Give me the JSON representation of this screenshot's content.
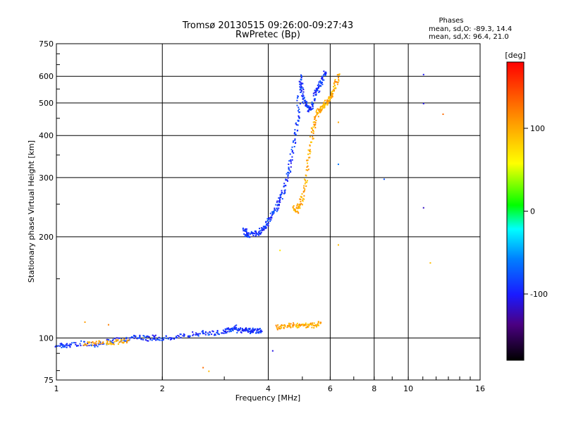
{
  "chart_data": {
    "type": "scatter",
    "title": "Tromsø 20130515 09:26:00-09:27:43",
    "subtitle": "RwPretec (Bp)",
    "xlabel": "Frequency [MHz]",
    "ylabel": "Stationary phase Virtual Height [km]",
    "x_scale": "log",
    "y_scale": "log",
    "xlim": [
      1,
      16
    ],
    "ylim": [
      75,
      750
    ],
    "x_ticks": [
      "1",
      "2",
      "4",
      "6",
      "8",
      "10",
      "16"
    ],
    "y_ticks": [
      "75",
      "100",
      "200",
      "300",
      "400",
      "500",
      "600",
      "750"
    ],
    "grid": true,
    "phases": {
      "header": "Phases",
      "o_stats": "mean, sd,O: -89.3, 14.4",
      "x_stats": "mean, sd,X:  96.4, 21.0"
    },
    "colorbar": {
      "label": "[deg]",
      "range": [
        -180,
        180
      ],
      "ticks": [
        "100",
        "0",
        "-100"
      ],
      "tick_values": [
        100,
        0,
        -100
      ]
    },
    "series": [
      {
        "name": "",
        "color_phase": -90,
        "segments": [
          [
            [
              1.0,
              96
            ],
            [
              1.05,
              95
            ],
            [
              1.1,
              96
            ],
            [
              1.2,
              97
            ],
            [
              1.3,
              96
            ],
            [
              1.4,
              98
            ],
            [
              1.5,
              99
            ],
            [
              1.6,
              100
            ],
            [
              1.7,
              101
            ],
            [
              1.8,
              100
            ],
            [
              1.9,
              101
            ],
            [
              2.0,
              100
            ],
            [
              2.2,
              101
            ],
            [
              2.4,
              103
            ],
            [
              2.6,
              104
            ],
            [
              2.8,
              104
            ],
            [
              3.0,
              105
            ],
            [
              3.1,
              106
            ],
            [
              3.2,
              108
            ],
            [
              3.3,
              105
            ],
            [
              3.4,
              107
            ],
            [
              3.5,
              105
            ],
            [
              3.6,
              106
            ],
            [
              3.7,
              105
            ],
            [
              3.8,
              106
            ]
          ],
          [
            [
              3.4,
              212
            ],
            [
              3.45,
              205
            ],
            [
              3.5,
              203
            ],
            [
              3.6,
              206
            ],
            [
              3.7,
              205
            ],
            [
              3.8,
              210
            ],
            [
              3.9,
              215
            ],
            [
              4.0,
              225
            ],
            [
              4.1,
              235
            ],
            [
              4.2,
              245
            ],
            [
              4.3,
              258
            ],
            [
              4.4,
              275
            ],
            [
              4.5,
              300
            ],
            [
              4.6,
              330
            ],
            [
              4.7,
              380
            ],
            [
              4.8,
              430
            ],
            [
              4.85,
              480
            ],
            [
              4.9,
              600
            ],
            [
              4.95,
              560
            ],
            [
              5.0,
              520
            ],
            [
              5.1,
              500
            ],
            [
              5.2,
              480
            ],
            [
              5.3,
              490
            ],
            [
              5.4,
              530
            ],
            [
              5.5,
              550
            ],
            [
              5.6,
              570
            ],
            [
              5.7,
              600
            ],
            [
              5.8,
              620
            ]
          ]
        ],
        "points": [
          [
            11.0,
            610
          ],
          [
            11.0,
            500
          ],
          [
            11.0,
            245
          ],
          [
            8.5,
            298
          ],
          [
            6.3,
            330
          ],
          [
            4.1,
            92
          ]
        ]
      },
      {
        "name": "",
        "color_phase": 100,
        "segments": [
          [
            [
              1.2,
              96
            ],
            [
              1.3,
              97
            ],
            [
              1.4,
              97
            ],
            [
              1.5,
              98
            ],
            [
              1.6,
              99
            ]
          ],
          [
            [
              4.2,
              108
            ],
            [
              4.4,
              109
            ],
            [
              4.6,
              110
            ],
            [
              4.8,
              109
            ],
            [
              5.0,
              110
            ],
            [
              5.2,
              109
            ],
            [
              5.4,
              110
            ],
            [
              5.6,
              111
            ]
          ],
          [
            [
              4.7,
              245
            ],
            [
              4.8,
              240
            ],
            [
              4.9,
              250
            ],
            [
              5.0,
              265
            ],
            [
              5.1,
              300
            ],
            [
              5.2,
              350
            ],
            [
              5.3,
              400
            ],
            [
              5.4,
              440
            ],
            [
              5.5,
              470
            ],
            [
              5.6,
              480
            ],
            [
              5.7,
              490
            ],
            [
              5.8,
              500
            ],
            [
              5.9,
              510
            ],
            [
              6.0,
              525
            ],
            [
              6.1,
              540
            ],
            [
              6.2,
              570
            ],
            [
              6.3,
              610
            ]
          ]
        ],
        "points": [
          [
            1.2,
            112
          ],
          [
            1.4,
            110
          ],
          [
            2.6,
            82
          ],
          [
            2.7,
            80
          ],
          [
            6.3,
            440
          ],
          [
            11.5,
            168
          ],
          [
            12.5,
            465
          ],
          [
            6.3,
            190
          ],
          [
            4.3,
            183
          ]
        ]
      }
    ]
  }
}
